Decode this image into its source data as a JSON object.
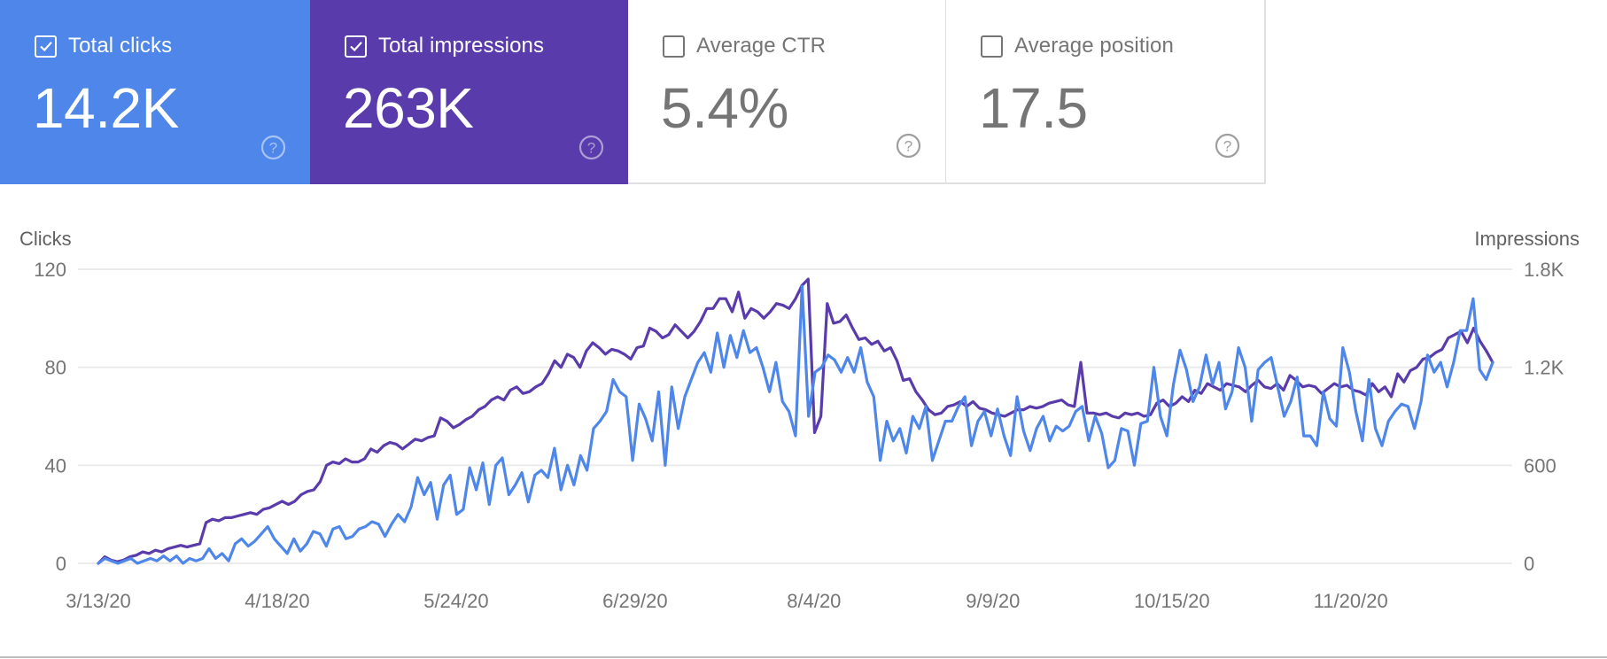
{
  "metrics": [
    {
      "label": "Total clicks",
      "value": "14.2K",
      "checked": true,
      "color": "#4E86E9",
      "help_icon": "help-circle-icon"
    },
    {
      "label": "Total impressions",
      "value": "263K",
      "checked": true,
      "color": "#5A3BAB",
      "help_icon": "help-circle-icon"
    },
    {
      "label": "Average CTR",
      "value": "5.4%",
      "checked": false,
      "color": "#ffffff",
      "help_icon": "help-circle-icon"
    },
    {
      "label": "Average position",
      "value": "17.5",
      "checked": false,
      "color": "#ffffff",
      "help_icon": "help-circle-icon"
    }
  ],
  "chart_data": {
    "type": "line",
    "title": "",
    "ylabel": "Clicks",
    "y2label": "Impressions",
    "xlabel": "",
    "ylim": [
      0,
      120
    ],
    "y2lim": [
      0,
      1800
    ],
    "yticks": [
      "0",
      "40",
      "80",
      "120"
    ],
    "y2ticks": [
      "0",
      "600",
      "1.2K",
      "1.8K"
    ],
    "xticks": [
      "3/13/20",
      "4/18/20",
      "5/24/20",
      "6/29/20",
      "8/4/20",
      "9/9/20",
      "10/15/20",
      "11/20/20"
    ],
    "x_start": "3/13/20",
    "x_step_days": 2,
    "grid": true,
    "legend": "none",
    "series": [
      {
        "name": "Clicks",
        "axis": "left",
        "color": "#4E86E9",
        "values": [
          0,
          2,
          1,
          0,
          1,
          2,
          0,
          1,
          2,
          1,
          3,
          1,
          3,
          0,
          2,
          1,
          2,
          6,
          2,
          4,
          1,
          8,
          10,
          7,
          9,
          12,
          15,
          10,
          7,
          4,
          10,
          5,
          8,
          13,
          12,
          7,
          14,
          15,
          10,
          11,
          14,
          15,
          17,
          16,
          11,
          16,
          20,
          17,
          23,
          35,
          28,
          33,
          18,
          32,
          36,
          20,
          22,
          39,
          30,
          41,
          24,
          40,
          43,
          28,
          32,
          37,
          25,
          36,
          38,
          35,
          47,
          30,
          40,
          32,
          44,
          38,
          55,
          58,
          62,
          75,
          70,
          68,
          42,
          65,
          59,
          50,
          70,
          40,
          72,
          55,
          68,
          75,
          82,
          86,
          78,
          94,
          80,
          93,
          84,
          95,
          86,
          88,
          80,
          70,
          82,
          66,
          62,
          52,
          113,
          60,
          78,
          80,
          85,
          83,
          78,
          84,
          78,
          88,
          74,
          68,
          42,
          58,
          50,
          55,
          45,
          60,
          55,
          64,
          42,
          50,
          58,
          58,
          64,
          68,
          48,
          58,
          62,
          52,
          63,
          52,
          44,
          68,
          54,
          46,
          55,
          60,
          50,
          56,
          54,
          56,
          62,
          64,
          50,
          60,
          53,
          39,
          42,
          55,
          54,
          40,
          57,
          58,
          80,
          60,
          52,
          73,
          87,
          79,
          66,
          72,
          85,
          73,
          82,
          63,
          70,
          88,
          80,
          58,
          79,
          82,
          84,
          72,
          60,
          66,
          76,
          52,
          52,
          48,
          70,
          59,
          56,
          88,
          78,
          62,
          50,
          75,
          55,
          48,
          58,
          62,
          65,
          64,
          55,
          66,
          85,
          78,
          82,
          72,
          82,
          95,
          95,
          108,
          79,
          75,
          82
        ]
      },
      {
        "name": "Impressions",
        "axis": "right",
        "color": "#5A3BAB",
        "values": [
          0,
          40,
          20,
          10,
          20,
          40,
          50,
          70,
          60,
          80,
          70,
          90,
          100,
          110,
          100,
          110,
          120,
          250,
          270,
          260,
          280,
          280,
          290,
          300,
          310,
          300,
          330,
          340,
          360,
          380,
          360,
          380,
          420,
          440,
          450,
          500,
          600,
          620,
          610,
          640,
          620,
          620,
          640,
          700,
          680,
          720,
          740,
          730,
          700,
          730,
          760,
          750,
          770,
          780,
          890,
          870,
          830,
          850,
          880,
          900,
          940,
          960,
          1000,
          1020,
          1000,
          1060,
          1080,
          1040,
          1050,
          1080,
          1100,
          1160,
          1240,
          1200,
          1280,
          1260,
          1200,
          1300,
          1350,
          1320,
          1280,
          1310,
          1300,
          1280,
          1250,
          1320,
          1330,
          1440,
          1420,
          1380,
          1400,
          1460,
          1420,
          1380,
          1420,
          1480,
          1560,
          1560,
          1620,
          1620,
          1540,
          1660,
          1500,
          1560,
          1540,
          1500,
          1540,
          1590,
          1580,
          1560,
          1620,
          1700,
          1740,
          800,
          900,
          1590,
          1470,
          1480,
          1520,
          1440,
          1370,
          1380,
          1340,
          1360,
          1300,
          1320,
          1240,
          1120,
          1130,
          1050,
          1000,
          940,
          910,
          920,
          960,
          970,
          990,
          960,
          990,
          950,
          940,
          920,
          910,
          900,
          920,
          940,
          940,
          960,
          950,
          960,
          980,
          990,
          1000,
          970,
          960,
          1230,
          920,
          920,
          910,
          920,
          900,
          890,
          920,
          910,
          920,
          900,
          910,
          980,
          1000,
          960,
          980,
          1020,
          990,
          1060,
          1040,
          1100,
          1080,
          1060,
          1100,
          1090,
          1080,
          1050,
          1090,
          1120,
          1080,
          1070,
          1100,
          1060,
          1150,
          1120,
          1080,
          1090,
          1080,
          1040,
          1070,
          1100,
          1080,
          1090,
          1060,
          1050,
          1030,
          1100,
          1050,
          1080,
          1020,
          1160,
          1110,
          1180,
          1200,
          1250,
          1260,
          1290,
          1310,
          1380,
          1400,
          1420,
          1350,
          1440,
          1360,
          1300,
          1230
        ]
      }
    ]
  }
}
